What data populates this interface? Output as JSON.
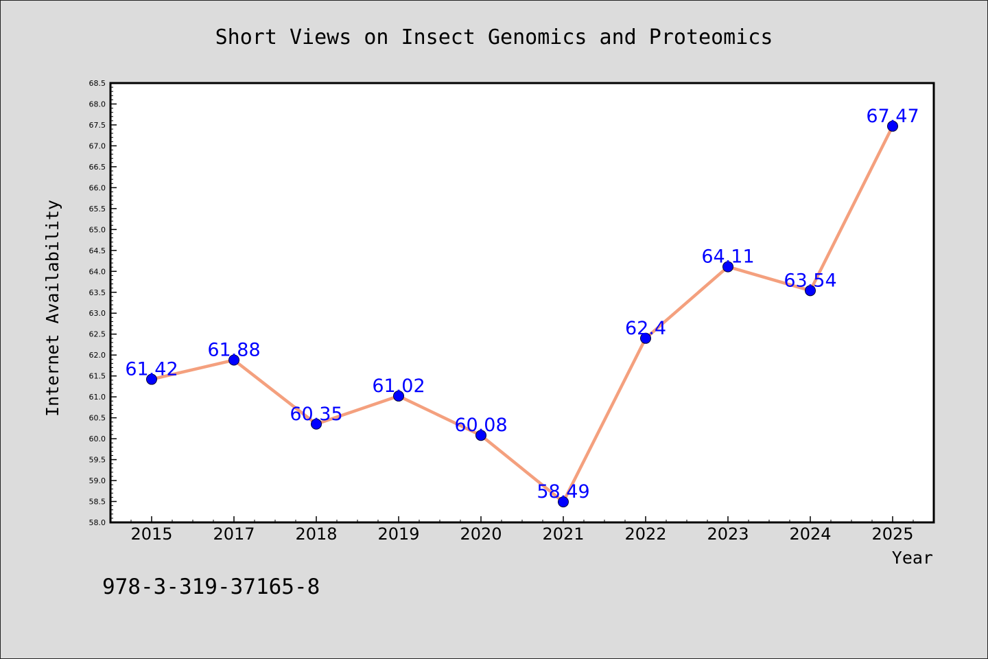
{
  "chart_data": {
    "type": "line",
    "title": "Short Views on Insect Genomics and Proteomics",
    "xlabel": "Year",
    "ylabel": "Internet Availability",
    "categories": [
      "2015",
      "2017",
      "2018",
      "2019",
      "2020",
      "2021",
      "2022",
      "2023",
      "2024",
      "2025"
    ],
    "series": [
      {
        "values": [
          61.42,
          61.88,
          60.35,
          61.02,
          60.08,
          58.49,
          62.4,
          64.11,
          63.54,
          67.47
        ],
        "data_labels": [
          "61.42",
          "61.88",
          "60.35",
          "61.02",
          "60.08",
          "58.49",
          "62.4",
          "64.11",
          "63.54",
          "67.47"
        ],
        "line_color": "#f4a07e",
        "marker_color": "#0000ff"
      }
    ],
    "ylim": [
      58.0,
      68.5
    ],
    "yticks": [
      "58.0",
      "58.5",
      "59.0",
      "59.5",
      "60.0",
      "60.5",
      "61.0",
      "61.5",
      "62.0",
      "62.5",
      "63.0",
      "63.5",
      "64.0",
      "64.5",
      "65.0",
      "65.5",
      "66.0",
      "66.5",
      "67.0",
      "67.5",
      "68.0",
      "68.5"
    ],
    "grid": false,
    "legend": "none",
    "background_color": "#dcdcdc",
    "plot_background_color": "#ffffff"
  },
  "annotation": {
    "isbn": "978-3-319-37165-8"
  }
}
